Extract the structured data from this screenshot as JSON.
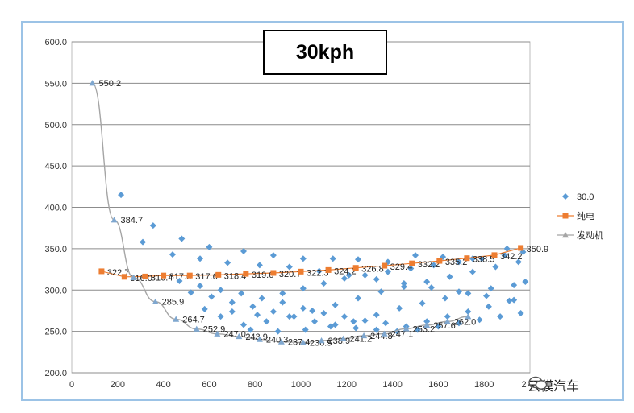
{
  "watermark": "云貘汽车",
  "chart_data": {
    "type": "scatter",
    "title": "30kph",
    "xlim": [
      0,
      2000
    ],
    "ylim": [
      200,
      600
    ],
    "x_ticks": [
      0,
      200,
      400,
      600,
      800,
      1000,
      1200,
      1400,
      1600,
      1800
    ],
    "x_tick_labels": [
      "0",
      "200",
      "400",
      "600",
      "800",
      "1000",
      "1200",
      "1400",
      "1600",
      "1800"
    ],
    "x_last_tick_label": "2…",
    "y_ticks": [
      200,
      250,
      300,
      350,
      400,
      450,
      500,
      550,
      600
    ],
    "y_tick_labels": [
      "200.0",
      "250.0",
      "300.0",
      "350.0",
      "400.0",
      "450.0",
      "500.0",
      "550.0",
      "600.0"
    ],
    "legend": [
      {
        "name": "30.0",
        "color": "#5b9bd5",
        "marker": "diamond"
      },
      {
        "name": "纯电",
        "color": "#ed7d31",
        "marker": "square"
      },
      {
        "name": "发动机",
        "color": "#a5a5a5",
        "marker": "triangle"
      }
    ],
    "series": [
      {
        "name": "发动机",
        "color": "#a5a5a5",
        "x": [
          90,
          185,
          270,
          365,
          455,
          545,
          635,
          730,
          820,
          915,
          1010,
          1090,
          1185,
          1275,
          1365,
          1460,
          1550,
          1640,
          1730
        ],
        "y": [
          550.2,
          384.7,
          315.0,
          285.9,
          264.7,
          252.9,
          247.0,
          243.9,
          240.3,
          237.4,
          236.5,
          238.9,
          241.2,
          244.8,
          247.1,
          253.2,
          257.6,
          262.0,
          268.0
        ],
        "labels": [
          "550.2",
          "384.7",
          "",
          "285.9",
          "264.7",
          "252.9",
          "247.0",
          "243.9",
          "240.3",
          "237.4",
          "236.5",
          "238.9",
          "241.2",
          "244.8",
          "247.1",
          "253.2",
          "257.6",
          "262.0",
          ""
        ]
      },
      {
        "name": "纯电",
        "color": "#ed7d31",
        "x": [
          130,
          230,
          320,
          400,
          515,
          640,
          760,
          880,
          1000,
          1120,
          1240,
          1365,
          1485,
          1605,
          1725,
          1845,
          1960
        ],
        "y": [
          322.7,
          316.0,
          316.4,
          317.6,
          317.6,
          318.4,
          319.6,
          320.7,
          322.3,
          324.2,
          326.8,
          329.4,
          332.2,
          335.2,
          338.5,
          342.2,
          350.9
        ],
        "labels": [
          "322.7",
          "316.0",
          "316.4",
          "317.6",
          "317.6",
          "318.4",
          "319.6",
          "320.7",
          "322.3",
          "324.2",
          "326.8",
          "329.4",
          "332.2",
          "335.2",
          "338.5",
          "342.2",
          "350.9"
        ]
      },
      {
        "name": "30.0",
        "color": "#5b9bd5",
        "points": [
          [
            215,
            415
          ],
          [
            355,
            378
          ],
          [
            310,
            358
          ],
          [
            480,
            362
          ],
          [
            600,
            352
          ],
          [
            750,
            347
          ],
          [
            880,
            342
          ],
          [
            1010,
            338
          ],
          [
            1140,
            338
          ],
          [
            1250,
            337
          ],
          [
            1380,
            334
          ],
          [
            1500,
            342
          ],
          [
            1620,
            340
          ],
          [
            1750,
            338
          ],
          [
            1900,
            350
          ],
          [
            1970,
            346
          ],
          [
            440,
            343
          ],
          [
            560,
            338
          ],
          [
            680,
            333
          ],
          [
            820,
            330
          ],
          [
            950,
            328
          ],
          [
            1080,
            323
          ],
          [
            1210,
            318
          ],
          [
            1330,
            313
          ],
          [
            1450,
            308
          ],
          [
            1570,
            303
          ],
          [
            1690,
            298
          ],
          [
            1810,
            293
          ],
          [
            1930,
            288
          ],
          [
            1980,
            310
          ],
          [
            520,
            297
          ],
          [
            610,
            292
          ],
          [
            700,
            285
          ],
          [
            790,
            280
          ],
          [
            880,
            274
          ],
          [
            970,
            268
          ],
          [
            1060,
            262
          ],
          [
            1150,
            258
          ],
          [
            1240,
            254
          ],
          [
            1330,
            252
          ],
          [
            1420,
            250
          ],
          [
            1510,
            252
          ],
          [
            1600,
            256
          ],
          [
            1690,
            260
          ],
          [
            1780,
            264
          ],
          [
            1870,
            268
          ],
          [
            1960,
            272
          ],
          [
            470,
            311
          ],
          [
            560,
            305
          ],
          [
            650,
            300
          ],
          [
            740,
            296
          ],
          [
            830,
            290
          ],
          [
            920,
            285
          ],
          [
            1010,
            278
          ],
          [
            1100,
            272
          ],
          [
            1190,
            268
          ],
          [
            1280,
            263
          ],
          [
            1370,
            260
          ],
          [
            1460,
            256
          ],
          [
            1550,
            262
          ],
          [
            1640,
            268
          ],
          [
            1730,
            274
          ],
          [
            1820,
            280
          ],
          [
            1910,
            287
          ],
          [
            750,
            258
          ],
          [
            850,
            262
          ],
          [
            950,
            268
          ],
          [
            1050,
            275
          ],
          [
            1150,
            282
          ],
          [
            1250,
            290
          ],
          [
            1350,
            298
          ],
          [
            1450,
            304
          ],
          [
            1550,
            310
          ],
          [
            1650,
            316
          ],
          [
            1750,
            322
          ],
          [
            1850,
            328
          ],
          [
            1950,
            334
          ],
          [
            650,
            268
          ],
          [
            780,
            252
          ],
          [
            900,
            250
          ],
          [
            1020,
            252
          ],
          [
            1130,
            256
          ],
          [
            1230,
            262
          ],
          [
            1330,
            270
          ],
          [
            1430,
            278
          ],
          [
            1530,
            284
          ],
          [
            1630,
            290
          ],
          [
            1730,
            296
          ],
          [
            1830,
            302
          ],
          [
            1930,
            306
          ],
          [
            580,
            277
          ],
          [
            700,
            274
          ],
          [
            810,
            270
          ],
          [
            920,
            296
          ],
          [
            1010,
            302
          ],
          [
            1100,
            308
          ],
          [
            1190,
            314
          ],
          [
            1280,
            318
          ],
          [
            1380,
            322
          ],
          [
            1480,
            326
          ],
          [
            1580,
            330
          ],
          [
            1690,
            334
          ],
          [
            1790,
            338
          ],
          [
            1890,
            342
          ]
        ]
      }
    ]
  }
}
